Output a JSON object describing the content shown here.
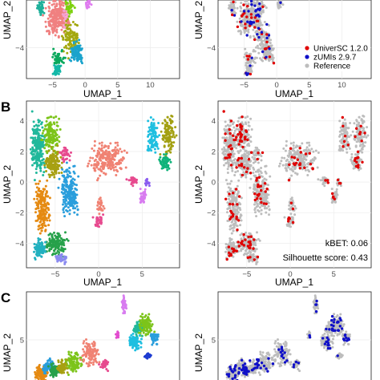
{
  "panel_labels": {
    "b": "B",
    "c": "C"
  },
  "metrics": {
    "kbet": "kBET: 0.06",
    "silhouette": "Silhouette score: 0.43"
  },
  "legend": {
    "items": [
      {
        "label": "UniverSC 1.2.0",
        "color": "#e00000"
      },
      {
        "label": "zUMIs 2.9.7",
        "color": "#1010c8"
      },
      {
        "label": "Reference",
        "color": "#bdbdbd"
      }
    ]
  },
  "chart_data": [
    {
      "type": "scatter",
      "panel": "A-left",
      "xlabel": "UMAP_1",
      "ylabel": "UMAP_2",
      "xticks": [
        -5,
        0,
        5,
        10
      ],
      "yticks": [
        -4
      ],
      "xlim": [
        -9,
        14.5
      ],
      "ylim": [
        -5.8,
        -1.2
      ],
      "grid": true
    },
    {
      "type": "scatter",
      "panel": "A-right",
      "xlabel": "UMAP_1",
      "ylabel": "UMAP_2",
      "xticks": [
        -5,
        0,
        5,
        10
      ],
      "yticks": [
        -4
      ],
      "xlim": [
        -9,
        14.5
      ],
      "ylim": [
        -5.8,
        -1.2
      ],
      "grid": true,
      "legend": "inside-right"
    },
    {
      "type": "scatter",
      "panel": "B-left",
      "xlabel": "UMAP_1",
      "ylabel": "UMAP_2",
      "xticks": [
        -5,
        0,
        5
      ],
      "yticks": [
        -4,
        -2,
        0,
        2,
        4
      ],
      "xlim": [
        -8.3,
        9.3
      ],
      "ylim": [
        -5.6,
        5.3
      ],
      "grid": true
    },
    {
      "type": "scatter",
      "panel": "B-right",
      "xlabel": "UMAP_1",
      "ylabel": "UMAP_2",
      "xticks": [
        -5,
        0,
        5
      ],
      "yticks": [
        -4,
        -2,
        0,
        2,
        4
      ],
      "xlim": [
        -8.3,
        9.3
      ],
      "ylim": [
        -5.6,
        5.3
      ],
      "grid": true
    },
    {
      "type": "scatter",
      "panel": "C-left",
      "xlabel": "",
      "ylabel": "UMAP_2",
      "yticks": [
        5
      ],
      "xlim": [
        -9,
        14.5
      ],
      "ylim": [
        -1,
        11
      ],
      "grid": true
    },
    {
      "type": "scatter",
      "panel": "C-right",
      "xlabel": "",
      "ylabel": "UMAP_2",
      "yticks": [
        5
      ],
      "xlim": [
        -9,
        14.5
      ],
      "ylim": [
        -1,
        11
      ],
      "grid": true
    }
  ]
}
